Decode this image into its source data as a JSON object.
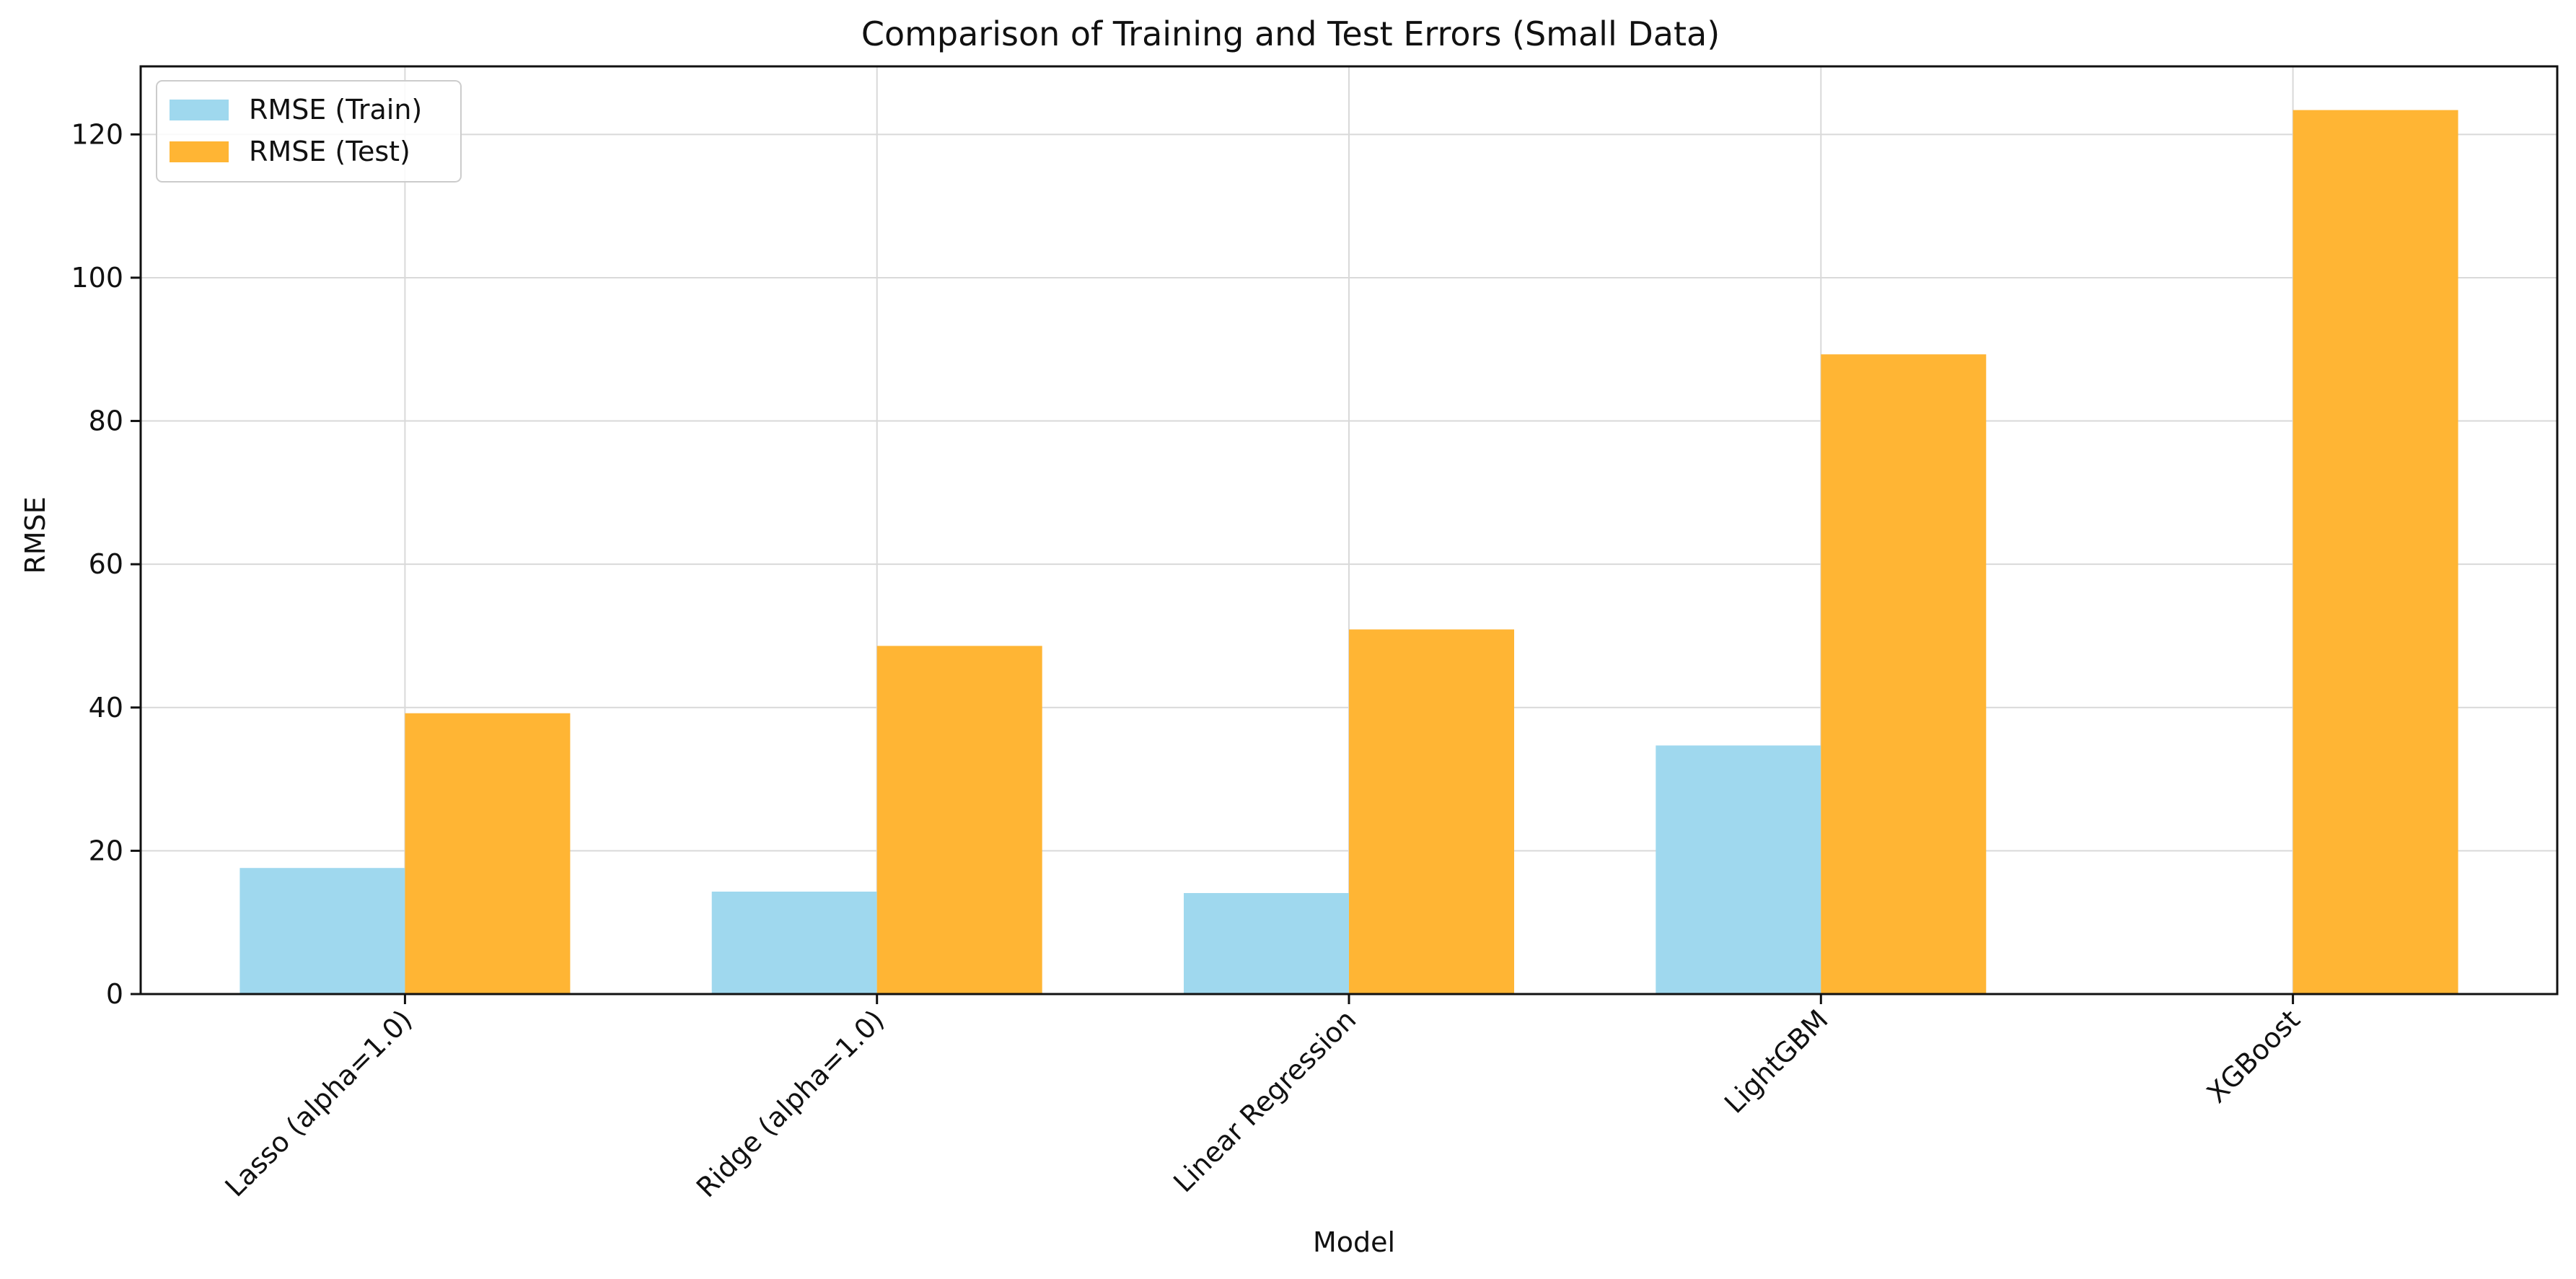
{
  "chart_data": {
    "type": "bar",
    "title": "Comparison of Training and Test Errors (Small Data)",
    "xlabel": "Model",
    "ylabel": "RMSE",
    "categories": [
      "Lasso (alpha=1.0)",
      "Ridge (alpha=1.0)",
      "Linear Regression",
      "LightGBM",
      "XGBoost"
    ],
    "series": [
      {
        "name": "RMSE (Train)",
        "values": [
          17.6,
          14.3,
          14.1,
          34.7,
          0
        ],
        "color": "#9fd8ee"
      },
      {
        "name": "RMSE (Test)",
        "values": [
          39.2,
          48.6,
          50.9,
          89.3,
          123.4
        ],
        "color": "#ffb534"
      }
    ],
    "ylim": [
      0,
      129.5
    ],
    "yticks": [
      0,
      20,
      40,
      60,
      80,
      100,
      120
    ],
    "grid": true,
    "legend_position": "top-left"
  }
}
